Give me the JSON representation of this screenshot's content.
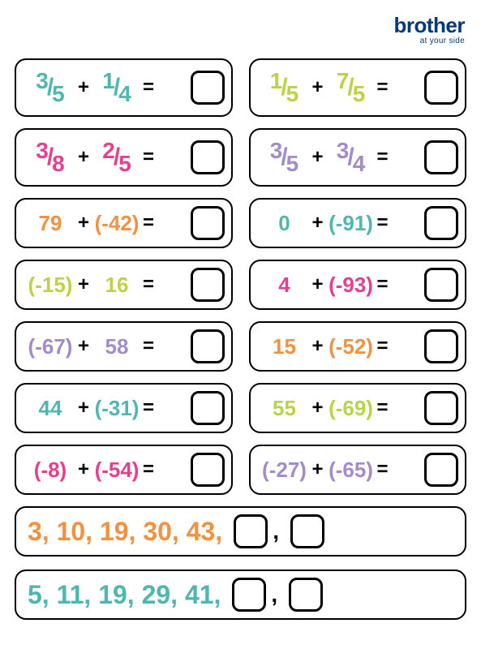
{
  "colors": {
    "teal": "#4fb6b0",
    "lime": "#b9d445",
    "magenta": "#e63f8e",
    "orange": "#f29240",
    "purple": "#a38cc9",
    "black": "#000000",
    "brand": "#003977"
  },
  "logo": {
    "main": "brother",
    "tag": "at your side"
  },
  "frac_rows": [
    {
      "left": {
        "a_num": "3",
        "a_den": "5",
        "a_color": "teal",
        "b_num": "1",
        "b_den": "4",
        "b_color": "teal"
      },
      "right": {
        "a_num": "1",
        "a_den": "5",
        "a_color": "lime",
        "b_num": "7",
        "b_den": "5",
        "b_color": "lime"
      }
    },
    {
      "left": {
        "a_num": "3",
        "a_den": "8",
        "a_color": "magenta",
        "b_num": "2",
        "b_den": "5",
        "b_color": "magenta"
      },
      "right": {
        "a_num": "3",
        "a_den": "5",
        "a_color": "purple",
        "b_num": "3",
        "b_den": "4",
        "b_color": "purple"
      }
    }
  ],
  "int_rows": [
    {
      "left": {
        "a": "79",
        "a_color": "orange",
        "b": "(-42)",
        "b_color": "orange"
      },
      "right": {
        "a": "0",
        "a_color": "teal",
        "b": "(-91)",
        "b_color": "teal"
      }
    },
    {
      "left": {
        "a": "(-15)",
        "a_color": "lime",
        "b": "16",
        "b_color": "lime"
      },
      "right": {
        "a": "4",
        "a_color": "magenta",
        "b": "(-93)",
        "b_color": "magenta"
      }
    },
    {
      "left": {
        "a": "(-67)",
        "a_color": "purple",
        "b": "58",
        "b_color": "purple"
      },
      "right": {
        "a": "15",
        "a_color": "orange",
        "b": "(-52)",
        "b_color": "orange"
      }
    },
    {
      "left": {
        "a": "44",
        "a_color": "teal",
        "b": "(-31)",
        "b_color": "teal"
      },
      "right": {
        "a": "55",
        "a_color": "lime",
        "b": "(-69)",
        "b_color": "lime"
      }
    },
    {
      "left": {
        "a": "(-8)",
        "a_color": "magenta",
        "b": "(-54)",
        "b_color": "magenta"
      },
      "right": {
        "a": "(-27)",
        "a_color": "purple",
        "b": "(-65)",
        "b_color": "purple"
      }
    }
  ],
  "sequences": [
    {
      "text": "3,  10,  19,  30,  43,",
      "color": "orange"
    },
    {
      "text": "5,  11,  19,  29,  41,",
      "color": "teal"
    }
  ]
}
